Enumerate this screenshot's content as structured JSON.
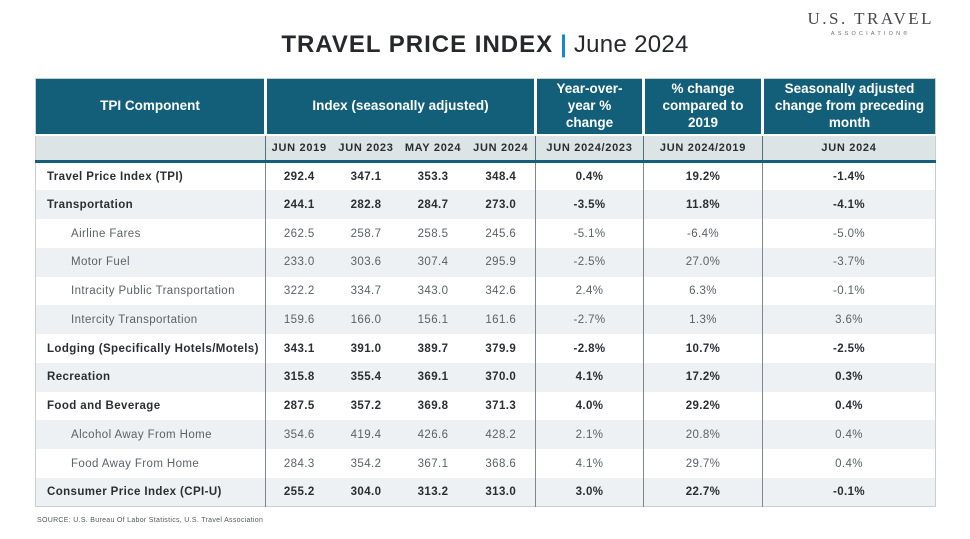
{
  "colors": {
    "teal_header": "#135f7a",
    "accent_blue": "#1a86cb",
    "subheader_bg": "#dde4e5",
    "alt_row_bg": "#eef1f3",
    "dark_text": "#2b2e30",
    "muted_text": "#5c6165"
  },
  "logo": {
    "name": "U.S. TRAVEL",
    "subname": "ASSOCIATION",
    "registered": "®"
  },
  "title": {
    "main": "TRAVEL PRICE INDEX",
    "divider": "|",
    "period": "June 2024"
  },
  "table": {
    "headers": {
      "component": "TPI Component",
      "index_group": "Index  (seasonally adjusted)",
      "yoy": "Year-over-year % change",
      "vs2019": "% change compared to 2019",
      "seasonal": "Seasonally adjusted change from preceding month"
    },
    "sub_headers": [
      "JUN 2019",
      "JUN 2023",
      "MAY 2024",
      "JUN 2024",
      "JUN 2024/2023",
      "JUN 2024/2019",
      "JUN 2024"
    ],
    "rows": [
      {
        "label": "Travel Price Index (TPI)",
        "bold": true,
        "indent": false,
        "values": [
          "292.4",
          "347.1",
          "353.3",
          "348.4",
          "0.4%",
          "19.2%",
          "-1.4%"
        ]
      },
      {
        "label": "Transportation",
        "bold": true,
        "indent": false,
        "values": [
          "244.1",
          "282.8",
          "284.7",
          "273.0",
          "-3.5%",
          "11.8%",
          "-4.1%"
        ]
      },
      {
        "label": "Airline Fares",
        "bold": false,
        "indent": true,
        "values": [
          "262.5",
          "258.7",
          "258.5",
          "245.6",
          "-5.1%",
          "-6.4%",
          "-5.0%"
        ]
      },
      {
        "label": "Motor Fuel",
        "bold": false,
        "indent": true,
        "values": [
          "233.0",
          "303.6",
          "307.4",
          "295.9",
          "-2.5%",
          "27.0%",
          "-3.7%"
        ]
      },
      {
        "label": "Intracity Public Transportation",
        "bold": false,
        "indent": true,
        "values": [
          "322.2",
          "334.7",
          "343.0",
          "342.6",
          "2.4%",
          "6.3%",
          "-0.1%"
        ]
      },
      {
        "label": "Intercity Transportation",
        "bold": false,
        "indent": true,
        "values": [
          "159.6",
          "166.0",
          "156.1",
          "161.6",
          "-2.7%",
          "1.3%",
          "3.6%"
        ]
      },
      {
        "label": "Lodging (Specifically Hotels/Motels)",
        "bold": true,
        "indent": false,
        "values": [
          "343.1",
          "391.0",
          "389.7",
          "379.9",
          "-2.8%",
          "10.7%",
          "-2.5%"
        ]
      },
      {
        "label": "Recreation",
        "bold": true,
        "indent": false,
        "values": [
          "315.8",
          "355.4",
          "369.1",
          "370.0",
          "4.1%",
          "17.2%",
          "0.3%"
        ]
      },
      {
        "label": "Food and Beverage",
        "bold": true,
        "indent": false,
        "values": [
          "287.5",
          "357.2",
          "369.8",
          "371.3",
          "4.0%",
          "29.2%",
          "0.4%"
        ]
      },
      {
        "label": "Alcohol Away From Home",
        "bold": false,
        "indent": true,
        "values": [
          "354.6",
          "419.4",
          "426.6",
          "428.2",
          "2.1%",
          "20.8%",
          "0.4%"
        ]
      },
      {
        "label": "Food Away From Home",
        "bold": false,
        "indent": true,
        "values": [
          "284.3",
          "354.2",
          "367.1",
          "368.6",
          "4.1%",
          "29.7%",
          "0.4%"
        ]
      },
      {
        "label": "Consumer Price Index (CPI-U)",
        "bold": true,
        "indent": false,
        "values": [
          "255.2",
          "304.0",
          "313.2",
          "313.0",
          "3.0%",
          "22.7%",
          "-0.1%"
        ]
      }
    ]
  },
  "footer": {
    "source": "SOURCE: U.S. Bureau Of Labor Statistics, U.S. Travel Association"
  },
  "chart_data": {
    "type": "table",
    "title": "Travel Price Index — June 2024",
    "columns": [
      "TPI Component",
      "Index (seasonally adjusted) JUN 2019",
      "Index (seasonally adjusted) JUN 2023",
      "Index (seasonally adjusted) MAY 2024",
      "Index (seasonally adjusted) JUN 2024",
      "Year-over-year % change JUN 2024/2023",
      "% change compared to 2019 JUN 2024/2019",
      "Seasonally adjusted change from preceding month JUN 2024"
    ],
    "rows": [
      [
        "Travel Price Index (TPI)",
        292.4,
        347.1,
        353.3,
        348.4,
        0.4,
        19.2,
        -1.4
      ],
      [
        "Transportation",
        244.1,
        282.8,
        284.7,
        273.0,
        -3.5,
        11.8,
        -4.1
      ],
      [
        "Airline Fares",
        262.5,
        258.7,
        258.5,
        245.6,
        -5.1,
        -6.4,
        -5.0
      ],
      [
        "Motor Fuel",
        233.0,
        303.6,
        307.4,
        295.9,
        -2.5,
        27.0,
        -3.7
      ],
      [
        "Intracity Public Transportation",
        322.2,
        334.7,
        343.0,
        342.6,
        2.4,
        6.3,
        -0.1
      ],
      [
        "Intercity Transportation",
        159.6,
        166.0,
        156.1,
        161.6,
        -2.7,
        1.3,
        3.6
      ],
      [
        "Lodging (Specifically Hotels/Motels)",
        343.1,
        391.0,
        389.7,
        379.9,
        -2.8,
        10.7,
        -2.5
      ],
      [
        "Recreation",
        315.8,
        355.4,
        369.1,
        370.0,
        4.1,
        17.2,
        0.3
      ],
      [
        "Food and Beverage",
        287.5,
        357.2,
        369.8,
        371.3,
        4.0,
        29.2,
        0.4
      ],
      [
        "Alcohol Away From Home",
        354.6,
        419.4,
        426.6,
        428.2,
        2.1,
        20.8,
        0.4
      ],
      [
        "Food Away From Home",
        284.3,
        354.2,
        367.1,
        368.6,
        4.1,
        29.7,
        0.4
      ],
      [
        "Consumer Price Index (CPI-U)",
        255.2,
        304.0,
        313.2,
        313.0,
        3.0,
        22.7,
        -0.1
      ]
    ]
  }
}
